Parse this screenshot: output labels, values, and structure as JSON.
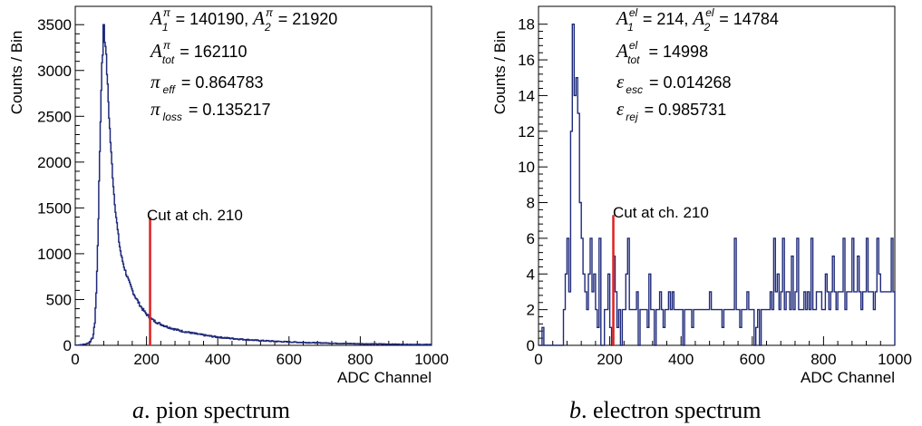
{
  "chart_data": [
    {
      "type": "histogram",
      "xlabel": "ADC Channel",
      "ylabel": "Counts / Bin",
      "xlim": [
        0,
        1000
      ],
      "ylim": [
        0,
        3700
      ],
      "xticks": [
        "0",
        "200",
        "400",
        "600",
        "800",
        "1000"
      ],
      "yticks": [
        "0",
        "500",
        "1000",
        "1500",
        "2000",
        "2500",
        "3000",
        "3500"
      ],
      "ytick_values": [
        0,
        500,
        1000,
        1500,
        2000,
        2500,
        3000,
        3500
      ],
      "xtick_values": [
        0,
        200,
        400,
        600,
        800,
        1000
      ],
      "series_color": "#1f2a7a",
      "bins": [
        [
          0,
          2
        ],
        [
          10,
          3
        ],
        [
          20,
          8
        ],
        [
          30,
          15
        ],
        [
          40,
          30
        ],
        [
          50,
          90
        ],
        [
          55,
          250
        ],
        [
          60,
          650
        ],
        [
          65,
          1400
        ],
        [
          70,
          2300
        ],
        [
          75,
          3100
        ],
        [
          80,
          3350
        ],
        [
          85,
          3300
        ],
        [
          90,
          2900
        ],
        [
          95,
          2500
        ],
        [
          100,
          2150
        ],
        [
          105,
          1850
        ],
        [
          110,
          1600
        ],
        [
          115,
          1400
        ],
        [
          120,
          1220
        ],
        [
          125,
          1080
        ],
        [
          130,
          960
        ],
        [
          140,
          820
        ],
        [
          150,
          700
        ],
        [
          160,
          600
        ],
        [
          170,
          520
        ],
        [
          180,
          450
        ],
        [
          190,
          390
        ],
        [
          200,
          340
        ],
        [
          210,
          300
        ],
        [
          220,
          270
        ],
        [
          240,
          230
        ],
        [
          260,
          200
        ],
        [
          280,
          175
        ],
        [
          300,
          155
        ],
        [
          320,
          140
        ],
        [
          340,
          125
        ],
        [
          360,
          112
        ],
        [
          380,
          100
        ],
        [
          400,
          90
        ],
        [
          420,
          82
        ],
        [
          440,
          75
        ],
        [
          460,
          68
        ],
        [
          480,
          62
        ],
        [
          500,
          57
        ],
        [
          520,
          52
        ],
        [
          540,
          48
        ],
        [
          560,
          44
        ],
        [
          580,
          40
        ],
        [
          600,
          37
        ],
        [
          620,
          34
        ],
        [
          640,
          31
        ],
        [
          660,
          29
        ],
        [
          680,
          27
        ],
        [
          700,
          25
        ],
        [
          720,
          23
        ],
        [
          740,
          21
        ],
        [
          760,
          20
        ],
        [
          780,
          18
        ],
        [
          800,
          17
        ],
        [
          820,
          16
        ],
        [
          840,
          15
        ],
        [
          860,
          14
        ],
        [
          880,
          13
        ],
        [
          900,
          12
        ],
        [
          920,
          11
        ],
        [
          940,
          10
        ],
        [
          960,
          9
        ],
        [
          980,
          9
        ],
        [
          1000,
          9
        ]
      ],
      "peak": {
        "x": 80,
        "y": 3500
      },
      "cut": {
        "x": 210,
        "y_top": 1400,
        "label": "Cut at ch. 210",
        "color": "#e02020"
      },
      "stats": {
        "a1_sym": "A",
        "a1_sup": "π",
        "a1_sub": "1",
        "a1_val": " = 140190, ",
        "a2_sym": "A",
        "a2_sup": "π",
        "a2_sub": "2",
        "a2_val": " = 21920",
        "atot_sym": "A",
        "atot_sup": "π",
        "atot_sub": "tot",
        "atot_val": " = 162110",
        "eff_sym": "π",
        "eff_sub": "eff",
        "eff_val": " = 0.864783",
        "loss_sym": "π",
        "loss_sub": "loss",
        "loss_val": " = 0.135217"
      },
      "caption_letter": "a",
      "caption_text": ". pion spectrum"
    },
    {
      "type": "histogram",
      "xlabel": "ADC Channel",
      "ylabel": "Counts / Bin",
      "xlim": [
        0,
        1000
      ],
      "ylim": [
        0,
        19
      ],
      "xticks": [
        "0",
        "200",
        "400",
        "600",
        "800",
        "1000"
      ],
      "yticks": [
        "0",
        "2",
        "4",
        "6",
        "8",
        "10",
        "12",
        "14",
        "16",
        "18"
      ],
      "ytick_values": [
        0,
        2,
        4,
        6,
        8,
        10,
        12,
        14,
        16,
        18
      ],
      "xtick_values": [
        0,
        200,
        400,
        600,
        800,
        1000
      ],
      "series_color": "#1f2a7a",
      "bin_width": 5,
      "counts": [
        0,
        0,
        1,
        0,
        0,
        0,
        0,
        0,
        0,
        0,
        0,
        0,
        0,
        0,
        2,
        4,
        6,
        3,
        12,
        18,
        14,
        15,
        13,
        8,
        6,
        4,
        3,
        2,
        4,
        6,
        3,
        4,
        2,
        1,
        6,
        0,
        0,
        2,
        2,
        4,
        1,
        0,
        5,
        3,
        1,
        2,
        0,
        2,
        2,
        4,
        6,
        2,
        2,
        2,
        2,
        3,
        0,
        2,
        2,
        2,
        2,
        1,
        4,
        2,
        2,
        0,
        2,
        2,
        3,
        2,
        1,
        2,
        2,
        3,
        2,
        3,
        2,
        2,
        2,
        2,
        2,
        0,
        2,
        2,
        2,
        2,
        1,
        2,
        2,
        2,
        2,
        2,
        2,
        2,
        2,
        2,
        3,
        2,
        2,
        2,
        2,
        2,
        2,
        1,
        2,
        2,
        2,
        2,
        2,
        2,
        6,
        2,
        2,
        1,
        2,
        2,
        2,
        3,
        2,
        2,
        2,
        0,
        1,
        2,
        0,
        2,
        2,
        2,
        2,
        2,
        3,
        2,
        6,
        3,
        4,
        2,
        3,
        6,
        2,
        3,
        3,
        2,
        5,
        2,
        3,
        6,
        2,
        2,
        2,
        3,
        2,
        3,
        2,
        6,
        2,
        2,
        3,
        3,
        3,
        2,
        2,
        4,
        3,
        2,
        3,
        5,
        3,
        2,
        3,
        3,
        3,
        6,
        2,
        3,
        3,
        3,
        6,
        3,
        3,
        5,
        3,
        2,
        3,
        3,
        6,
        3,
        3,
        3,
        2,
        3,
        6,
        4,
        3,
        3,
        3,
        3,
        3,
        3,
        6,
        3
      ],
      "cut": {
        "x": 210,
        "y_top": 7.3,
        "label": "Cut at ch. 210",
        "color": "#e02020"
      },
      "stats": {
        "a1_sym": "A",
        "a1_sup": "el",
        "a1_sub": "1",
        "a1_val": " = 214, ",
        "a2_sym": "A",
        "a2_sup": "el",
        "a2_sub": "2",
        "a2_val": " = 14784",
        "atot_sym": "A",
        "atot_sup": "el",
        "atot_sub": "tot",
        "atot_val": " = 14998",
        "eff_sym": "ε",
        "eff_sub": "esc",
        "eff_val": " = 0.014268",
        "loss_sym": "ε",
        "loss_sub": "rej",
        "loss_val": " = 0.985731"
      },
      "caption_letter": "b",
      "caption_text": ". electron spectrum"
    }
  ]
}
